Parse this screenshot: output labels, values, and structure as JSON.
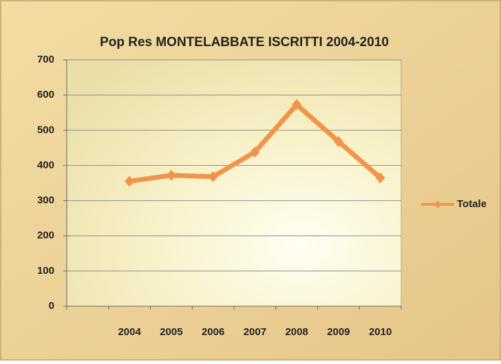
{
  "chart_data": {
    "type": "line",
    "title": "Pop Res  MONTELABBATE ISCRITTI 2004-2010",
    "categories": [
      null,
      "2004",
      "2005",
      "2006",
      "2007",
      "2008",
      "2009",
      "2010"
    ],
    "series": [
      {
        "name": "Totale",
        "color": "#f0954a",
        "values": [
          null,
          355,
          372,
          368,
          438,
          573,
          468,
          365
        ]
      }
    ],
    "ylim": [
      0,
      700
    ],
    "yticks": [
      0,
      100,
      200,
      300,
      400,
      500,
      600,
      700
    ],
    "grid": true,
    "legend": "right"
  }
}
